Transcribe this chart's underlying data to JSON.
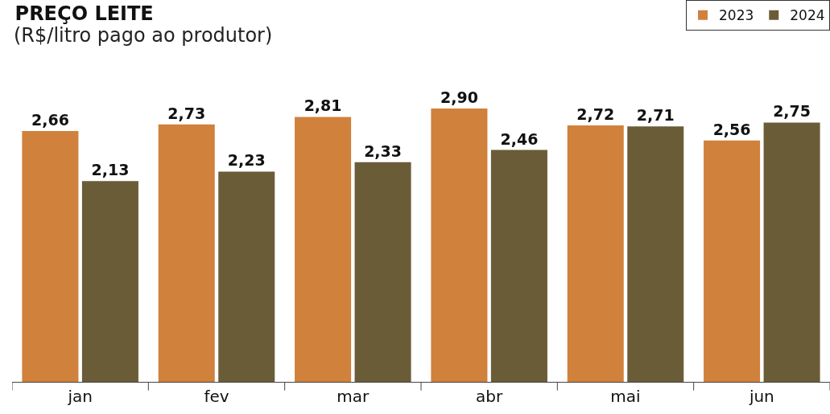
{
  "chart_data": {
    "type": "bar",
    "title": "PREÇO LEITE",
    "subtitle": "(R$/litro pago ao produtor)",
    "categories": [
      "jan",
      "fev",
      "mar",
      "abr",
      "mai",
      "jun"
    ],
    "series": [
      {
        "name": "2023",
        "color": "#d0813c",
        "values": [
          2.66,
          2.73,
          2.81,
          2.9,
          2.72,
          2.56
        ],
        "value_labels": [
          "2,66",
          "2,73",
          "2,81",
          "2,90",
          "2,72",
          "2,56"
        ]
      },
      {
        "name": "2024",
        "color": "#6b5c38",
        "values": [
          2.13,
          2.23,
          2.33,
          2.46,
          2.71,
          2.75
        ],
        "value_labels": [
          "2,13",
          "2,23",
          "2,33",
          "2,46",
          "2,71",
          "2,75"
        ]
      }
    ],
    "tick_labels": "x",
    "legend": "top right"
  }
}
